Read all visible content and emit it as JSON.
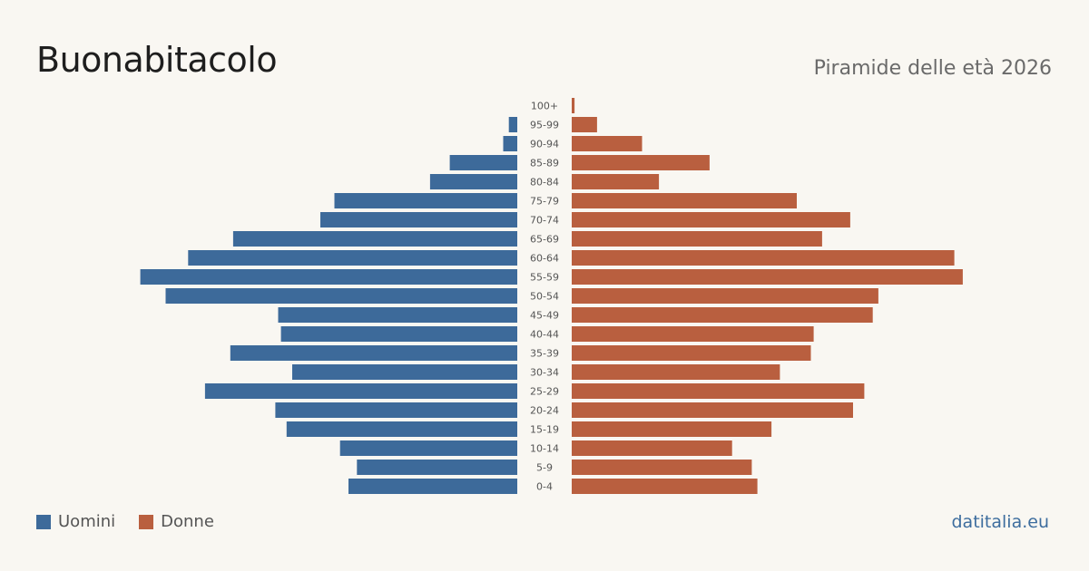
{
  "header": {
    "title": "Buonabitacolo",
    "subtitle": "Piramide delle età 2026"
  },
  "footer": {
    "source": "datitalia.eu"
  },
  "colors": {
    "male": "#3d6a9a",
    "female": "#b95f3f"
  },
  "chart_data": {
    "type": "bar",
    "orientation": "horizontal-population-pyramid",
    "categories": [
      "0-4",
      "5-9",
      "10-14",
      "15-19",
      "20-24",
      "25-29",
      "30-34",
      "35-39",
      "40-44",
      "45-49",
      "50-54",
      "55-59",
      "60-64",
      "65-69",
      "70-74",
      "75-79",
      "80-84",
      "85-89",
      "90-94",
      "95-99",
      "100+"
    ],
    "series": [
      {
        "name": "Uomini",
        "values": [
          60,
          57,
          63,
          82,
          86,
          111,
          80,
          102,
          84,
          85,
          125,
          134,
          117,
          101,
          70,
          65,
          31,
          24,
          5,
          3,
          0
        ]
      },
      {
        "name": "Donne",
        "values": [
          66,
          64,
          57,
          71,
          100,
          104,
          74,
          85,
          86,
          107,
          109,
          139,
          136,
          89,
          99,
          80,
          31,
          49,
          25,
          9,
          1
        ]
      }
    ],
    "legend": [
      "Uomini",
      "Donne"
    ],
    "legend_position": "bottom-left",
    "grid": false
  }
}
